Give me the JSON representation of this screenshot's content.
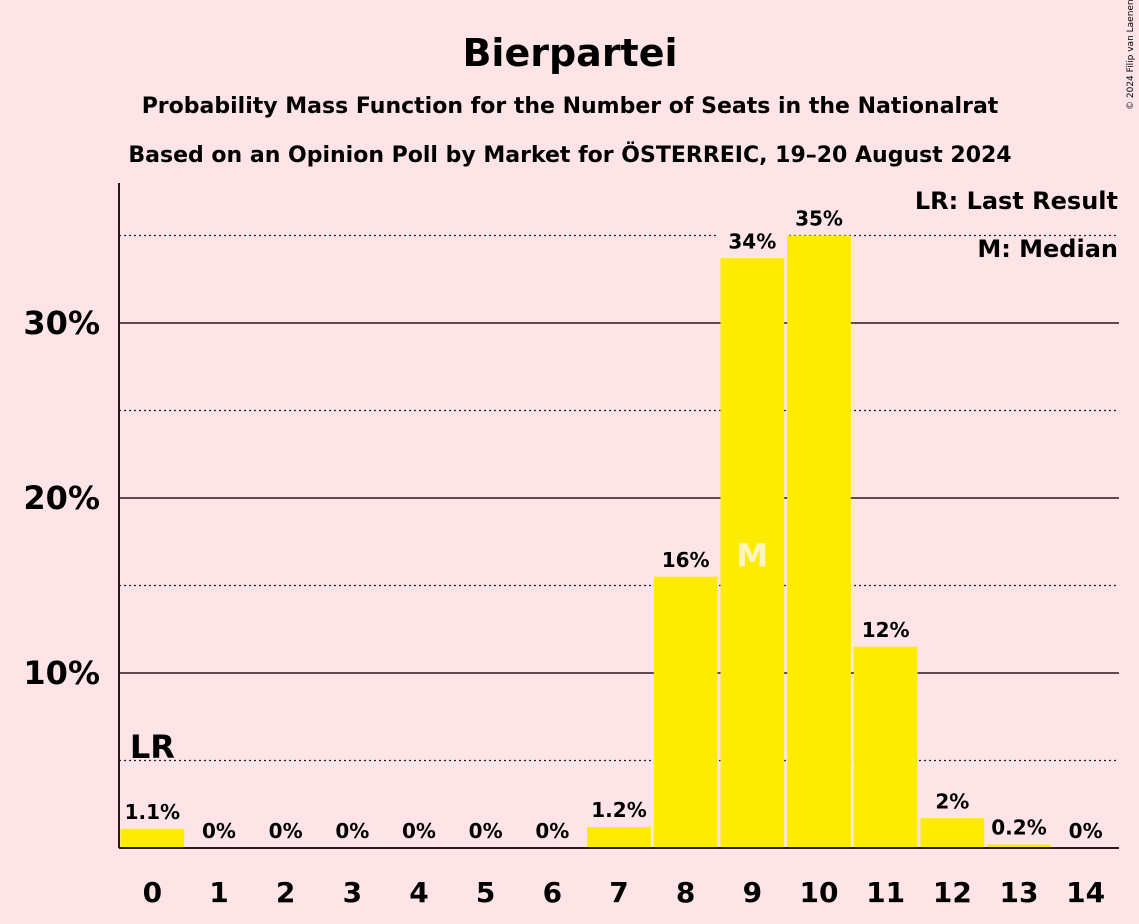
{
  "chart_data": {
    "type": "bar",
    "title": "Bierpartei",
    "subtitle": "Probability Mass Function for the Number of Seats in the Nationalrat",
    "subtitle2": "Based on an Opinion Poll by Market for ÖSTERREIC, 19–20 August 2024",
    "copyright": "© 2024 Filip van Laenen",
    "categories": [
      "0",
      "1",
      "2",
      "3",
      "4",
      "5",
      "6",
      "7",
      "8",
      "9",
      "10",
      "11",
      "12",
      "13",
      "14"
    ],
    "values": [
      1.1,
      0,
      0,
      0,
      0,
      0,
      0,
      1.2,
      15.5,
      33.7,
      35.0,
      11.5,
      1.7,
      0.2,
      0
    ],
    "value_labels": [
      "1.1%",
      "0%",
      "0%",
      "0%",
      "0%",
      "0%",
      "0%",
      "1.2%",
      "16%",
      "34%",
      "35%",
      "12%",
      "2%",
      "0.2%",
      "0%"
    ],
    "ylim": [
      0,
      38
    ],
    "yticks": [
      10,
      20,
      30
    ],
    "ytick_labels": [
      "10%",
      "20%",
      "30%"
    ],
    "minor_gridlines": [
      5,
      15,
      25,
      35
    ],
    "last_result_index": 0,
    "last_result_marker": "LR",
    "median_index": 9,
    "median_marker": "M",
    "legend": [
      "LR: Last Result",
      "M: Median"
    ],
    "colors": {
      "bar": "#fdec00",
      "background": "#fde4e6",
      "text": "#2a1a1e",
      "median_text": "#fdf5c0"
    }
  }
}
